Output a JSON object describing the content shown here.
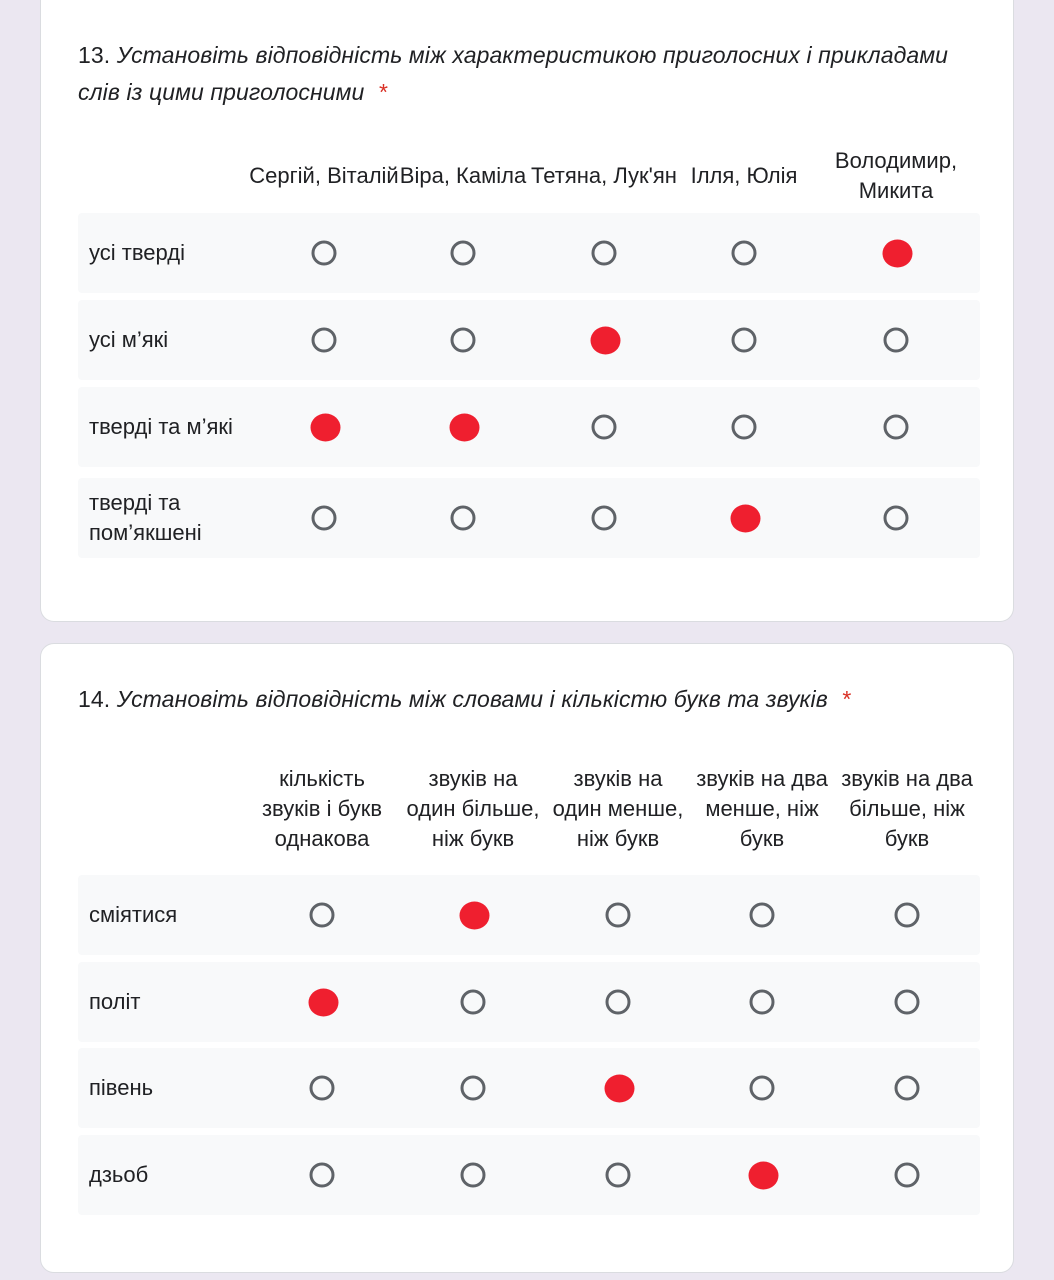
{
  "accent": "#ef1f2f",
  "q13": {
    "number": "13.",
    "question": "Установіть відповідність між характеристикою приголосних і прикладами слів із цими приголосними",
    "required_mark": "*",
    "columns": [
      "Сергій, Віталій",
      "Віра, Каміла",
      "Тетяна, Лук'ян",
      "Ілля, Юлія",
      "Володимир, Микита"
    ],
    "rows": [
      {
        "label": "усі тверді",
        "selected": 4
      },
      {
        "label": "усі м’які",
        "selected": 2
      },
      {
        "label": "тверді та м’які",
        "selected": 0
      },
      {
        "label": "тверді та пом’якшені",
        "selected": 3
      }
    ],
    "extra_selected": [
      {
        "row": 2,
        "col": 1
      }
    ]
  },
  "q14": {
    "number": "14.",
    "question": "Установіть відповідність між словами і кількістю букв та звуків",
    "required_mark": "*",
    "columns": [
      "кількість звуків і букв однакова",
      "звуків на один більше, ніж букв",
      "звуків на один менше, ніж букв",
      "звуків на два менше, ніж букв",
      "звуків на два більше, ніж букв"
    ],
    "rows": [
      {
        "label": "сміятися",
        "selected": 1
      },
      {
        "label": "політ",
        "selected": 0
      },
      {
        "label": "півень",
        "selected": 2
      },
      {
        "label": "дзьоб",
        "selected": 3
      }
    ]
  }
}
